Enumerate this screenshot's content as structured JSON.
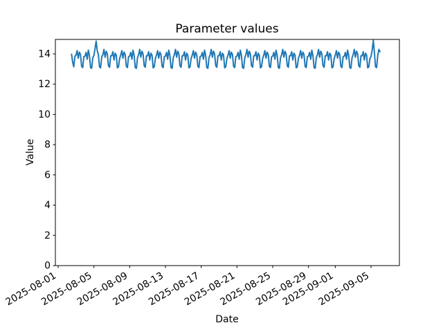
{
  "chart_data": {
    "type": "line",
    "title": "Parameter values",
    "xlabel": "Date",
    "ylabel": "Value",
    "line_color": "#1f77b4",
    "background_color": "#ffffff",
    "spine_color": "#000000",
    "grid": false,
    "legend": "none",
    "ylim": [
      0,
      14.96
    ],
    "y_ticks": [
      0,
      2,
      4,
      6,
      8,
      10,
      12,
      14
    ],
    "x_axis_days": [
      -0.31,
      38.17
    ],
    "x_ticks": [
      {
        "label": "2025-08-01",
        "day": 0
      },
      {
        "label": "2025-08-05",
        "day": 4
      },
      {
        "label": "2025-08-09",
        "day": 8
      },
      {
        "label": "2025-08-13",
        "day": 12
      },
      {
        "label": "2025-08-17",
        "day": 16
      },
      {
        "label": "2025-08-21",
        "day": 20
      },
      {
        "label": "2025-08-25",
        "day": 24
      },
      {
        "label": "2025-08-29",
        "day": 28
      },
      {
        "label": "2025-09-01",
        "day": 31
      },
      {
        "label": "2025-09-05",
        "day": 35
      }
    ],
    "series": [
      {
        "name": "parameter-values",
        "start_datetime": "2025-08-02 12:00",
        "start_day_offset": 1.5,
        "step_hours": 3,
        "values": [
          13.98,
          13.45,
          13.15,
          13.85,
          13.92,
          14.22,
          13.72,
          14.12,
          13.96,
          13.18,
          13.1,
          13.82,
          13.85,
          14.1,
          13.65,
          14.25,
          13.9,
          13.1,
          13.05,
          13.75,
          13.9,
          14.35,
          14.85,
          14.2,
          13.95,
          13.15,
          13.08,
          13.8,
          13.95,
          14.3,
          13.78,
          14.18,
          14.0,
          13.22,
          13.12,
          13.88,
          13.88,
          14.15,
          13.6,
          14.05,
          13.92,
          13.08,
          13.15,
          13.7,
          13.92,
          14.22,
          13.72,
          14.12,
          13.96,
          13.18,
          13.1,
          13.82,
          13.85,
          14.1,
          13.65,
          14.25,
          13.9,
          13.1,
          13.05,
          13.75,
          13.95,
          14.3,
          13.78,
          14.18,
          14.0,
          13.22,
          13.12,
          13.88,
          13.88,
          14.15,
          13.6,
          14.05,
          13.92,
          13.08,
          13.15,
          13.7,
          13.92,
          14.22,
          13.72,
          14.12,
          13.96,
          13.18,
          13.1,
          13.82,
          13.85,
          14.1,
          13.65,
          14.25,
          13.9,
          13.1,
          13.05,
          13.75,
          13.95,
          14.3,
          13.78,
          14.18,
          14.0,
          13.22,
          13.12,
          13.88,
          13.88,
          14.15,
          13.6,
          14.05,
          13.92,
          13.08,
          13.15,
          13.7,
          13.92,
          14.22,
          13.72,
          14.12,
          13.96,
          13.18,
          13.1,
          13.82,
          13.85,
          14.1,
          13.65,
          14.25,
          13.9,
          13.1,
          13.05,
          13.75,
          13.95,
          14.3,
          13.78,
          14.18,
          14.0,
          13.22,
          13.12,
          13.88,
          13.88,
          14.15,
          13.6,
          14.05,
          13.92,
          13.08,
          13.15,
          13.7,
          13.92,
          14.22,
          13.72,
          14.12,
          13.96,
          13.18,
          13.1,
          13.82,
          13.85,
          14.1,
          13.65,
          14.25,
          13.9,
          13.1,
          13.05,
          13.75,
          13.95,
          14.3,
          13.78,
          14.18,
          14.0,
          13.22,
          13.12,
          13.88,
          13.88,
          14.15,
          13.6,
          14.05,
          13.92,
          13.08,
          13.15,
          13.7,
          13.92,
          14.22,
          13.72,
          14.12,
          13.96,
          13.18,
          13.1,
          13.82,
          13.85,
          14.1,
          13.65,
          14.25,
          13.9,
          13.1,
          13.05,
          13.75,
          13.95,
          14.3,
          13.78,
          14.18,
          14.0,
          13.22,
          13.12,
          13.88,
          13.88,
          14.15,
          13.6,
          14.05,
          13.92,
          13.08,
          13.15,
          13.7,
          13.92,
          14.22,
          13.72,
          14.12,
          13.96,
          13.18,
          13.1,
          13.82,
          13.85,
          14.1,
          13.65,
          14.25,
          13.9,
          13.1,
          13.05,
          13.75,
          13.95,
          14.3,
          13.78,
          14.18,
          14.0,
          13.22,
          13.12,
          13.88,
          13.88,
          14.15,
          13.6,
          14.05,
          13.92,
          13.08,
          13.15,
          13.7,
          13.92,
          14.22,
          13.72,
          14.12,
          13.96,
          13.18,
          13.1,
          13.82,
          13.85,
          14.1,
          13.65,
          14.25,
          13.9,
          13.1,
          13.05,
          13.75,
          13.95,
          14.3,
          13.78,
          14.18,
          14.0,
          13.22,
          13.12,
          13.88,
          13.88,
          14.15,
          13.6,
          14.05,
          13.92,
          13.08,
          13.15,
          13.7,
          13.85,
          14.25,
          14.9,
          14.1,
          13.15,
          13.1,
          13.9,
          14.3,
          14.15
        ]
      }
    ]
  }
}
